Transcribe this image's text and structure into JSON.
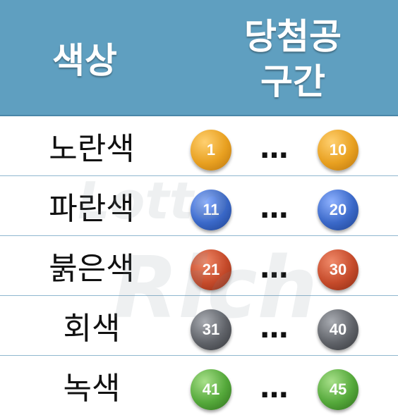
{
  "header": {
    "color_label": "색상",
    "range_label_line1": "당첨공",
    "range_label_line2": "구간"
  },
  "rows": [
    {
      "label": "노란색",
      "start": "1",
      "end": "10",
      "color": "#e8a020"
    },
    {
      "label": "파란색",
      "start": "11",
      "end": "20",
      "color": "#3a68c8"
    },
    {
      "label": "붉은색",
      "start": "21",
      "end": "30",
      "color": "#c54a2a"
    },
    {
      "label": "회색",
      "start": "31",
      "end": "40",
      "color": "#5f6268"
    },
    {
      "label": "녹색",
      "start": "41",
      "end": "45",
      "color": "#54a83a"
    }
  ],
  "dots": "…",
  "watermark": {
    "line1": "Lotto",
    "line2": "Rich"
  },
  "colors": {
    "header_bg": "#5f9fc0",
    "divider": "#8fb7cf"
  }
}
